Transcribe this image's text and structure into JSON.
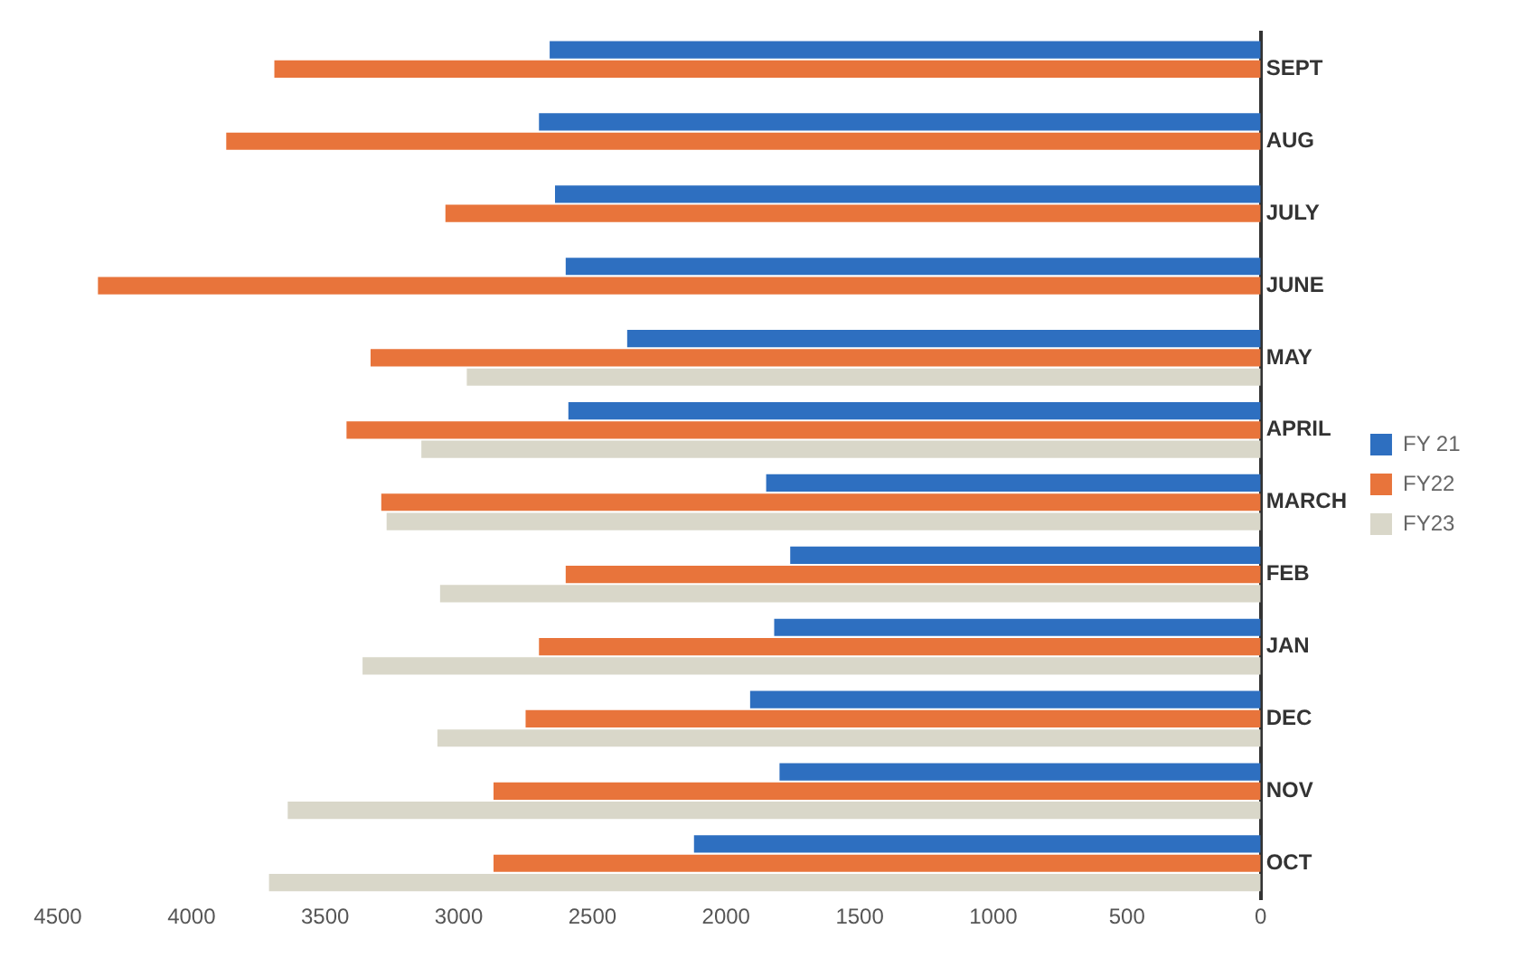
{
  "chart_data": {
    "type": "bar",
    "orientation": "horizontal",
    "categories": [
      "SEPT",
      "AUG",
      "JULY",
      "JUNE",
      "MAY",
      "APRIL",
      "MARCH",
      "FEB",
      "JAN",
      "DEC",
      "NOV",
      "OCT"
    ],
    "series": [
      {
        "name": "FY 21",
        "color": "#2e6fc0",
        "values": [
          2660,
          2700,
          2640,
          2600,
          2370,
          2590,
          1850,
          1760,
          1820,
          1910,
          1800,
          2120
        ]
      },
      {
        "name": "FY22",
        "color": "#e8743b",
        "values": [
          3690,
          3870,
          3050,
          4350,
          3330,
          3420,
          3290,
          2600,
          2700,
          2750,
          2870,
          2870
        ]
      },
      {
        "name": "FY23",
        "color": "#d9d7c9",
        "values": [
          null,
          null,
          null,
          null,
          2970,
          3140,
          3270,
          3070,
          3360,
          3080,
          3640,
          3710
        ]
      }
    ],
    "xlim": [
      4500,
      0
    ],
    "xticks": [
      0,
      500,
      1000,
      1500,
      2000,
      2500,
      3000,
      3500,
      4000,
      4500
    ],
    "grid": false,
    "legend": "right"
  }
}
